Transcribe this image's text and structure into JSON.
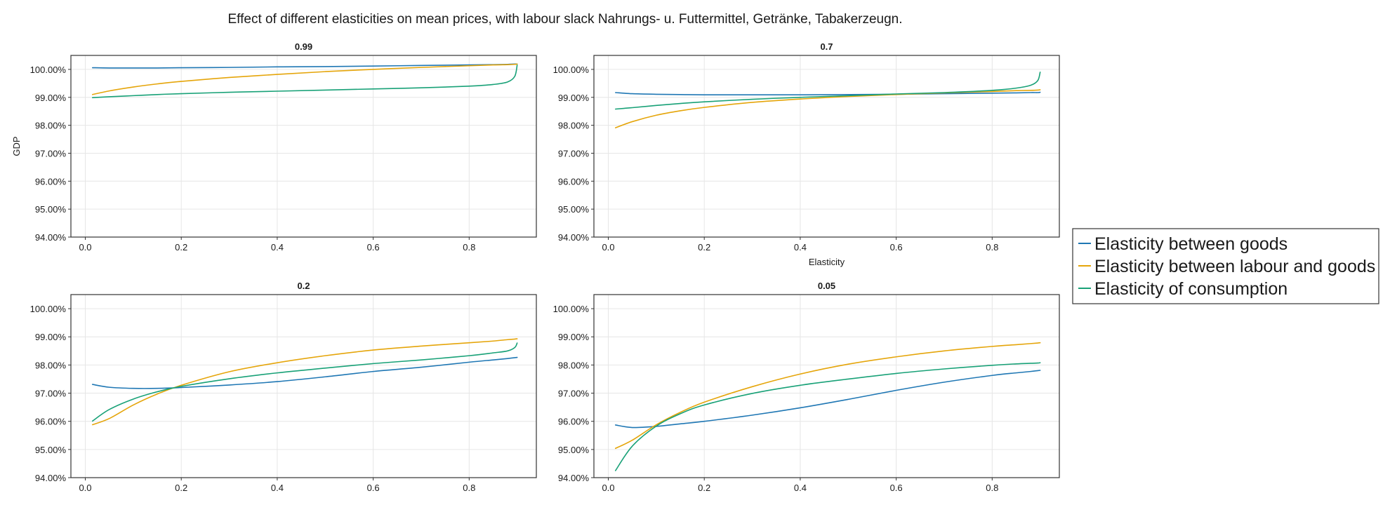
{
  "chart_data": {
    "type": "line",
    "title": "Effect of different elasticities on mean prices, with labour slack Nahrungs- u. Futtermittel, Getränke, Tabakerzeugn.",
    "legend": {
      "placement": "right",
      "entries": [
        {
          "name": "Elasticity between goods",
          "color": "#1f77b4"
        },
        {
          "name": "Elasticity between labour and goods",
          "color": "#e5a50a"
        },
        {
          "name": "Elasticity of consumption",
          "color": "#18a177"
        }
      ]
    },
    "grid": true,
    "shared_axes": {
      "xlim": [
        -0.03,
        0.94
      ],
      "ylim": [
        94.0,
        100.5
      ],
      "xticks": [
        0.0,
        0.2,
        0.4,
        0.6,
        0.8
      ],
      "xtick_labels": [
        "0.0",
        "0.2",
        "0.4",
        "0.6",
        "0.8"
      ],
      "yticks": [
        94,
        95,
        96,
        97,
        98,
        99,
        100
      ],
      "ytick_labels": [
        "94.00%",
        "95.00%",
        "96.00%",
        "97.00%",
        "98.00%",
        "99.00%",
        "100.00%"
      ]
    },
    "x": [
      0.015,
      0.05,
      0.1,
      0.15,
      0.2,
      0.3,
      0.4,
      0.5,
      0.6,
      0.7,
      0.8,
      0.85,
      0.88,
      0.895,
      0.9
    ],
    "panels": [
      {
        "title": "0.99",
        "ylabel": "GDP",
        "xlabel": "",
        "series": [
          {
            "name": "Elasticity between goods",
            "values": [
              100.06,
              100.05,
              100.05,
              100.05,
              100.06,
              100.07,
              100.09,
              100.1,
              100.12,
              100.14,
              100.16,
              100.17,
              100.18,
              100.19,
              100.19
            ]
          },
          {
            "name": "Elasticity between labour and goods",
            "values": [
              99.1,
              99.23,
              99.37,
              99.48,
              99.57,
              99.71,
              99.82,
              99.92,
              100.0,
              100.07,
              100.13,
              100.16,
              100.17,
              100.18,
              100.19
            ]
          },
          {
            "name": "Elasticity of consumption",
            "values": [
              98.99,
              99.02,
              99.06,
              99.1,
              99.13,
              99.18,
              99.22,
              99.26,
              99.3,
              99.34,
              99.4,
              99.46,
              99.55,
              99.75,
              100.15
            ]
          }
        ]
      },
      {
        "title": "0.7",
        "ylabel": "",
        "xlabel": "Elasticity",
        "series": [
          {
            "name": "Elasticity between goods",
            "values": [
              99.17,
              99.13,
              99.11,
              99.1,
              99.09,
              99.09,
              99.09,
              99.1,
              99.11,
              99.13,
              99.15,
              99.16,
              99.17,
              99.17,
              99.18
            ]
          },
          {
            "name": "Elasticity between labour and goods",
            "values": [
              97.91,
              98.13,
              98.36,
              98.52,
              98.64,
              98.82,
              98.94,
              99.03,
              99.1,
              99.16,
              99.21,
              99.24,
              99.25,
              99.26,
              99.27
            ]
          },
          {
            "name": "Elasticity of consumption",
            "values": [
              98.58,
              98.63,
              98.71,
              98.78,
              98.84,
              98.93,
              99.0,
              99.06,
              99.12,
              99.17,
              99.25,
              99.33,
              99.43,
              99.6,
              99.9
            ]
          }
        ]
      },
      {
        "title": "0.2",
        "ylabel": "",
        "xlabel": "",
        "series": [
          {
            "name": "Elasticity between goods",
            "values": [
              97.31,
              97.21,
              97.17,
              97.17,
              97.2,
              97.29,
              97.41,
              97.58,
              97.77,
              97.92,
              98.1,
              98.18,
              98.23,
              98.26,
              98.27
            ]
          },
          {
            "name": "Elasticity between labour and goods",
            "values": [
              95.88,
              96.1,
              96.58,
              96.97,
              97.28,
              97.76,
              98.08,
              98.33,
              98.53,
              98.67,
              98.79,
              98.85,
              98.9,
              98.92,
              98.93
            ]
          },
          {
            "name": "Elasticity of consumption",
            "values": [
              96.01,
              96.42,
              96.79,
              97.05,
              97.24,
              97.51,
              97.72,
              97.89,
              98.05,
              98.18,
              98.33,
              98.43,
              98.5,
              98.62,
              98.78
            ]
          }
        ]
      },
      {
        "title": "0.05",
        "ylabel": "",
        "xlabel": "",
        "series": [
          {
            "name": "Elasticity between goods",
            "values": [
              95.87,
              95.78,
              95.82,
              95.91,
              96.0,
              96.22,
              96.48,
              96.78,
              97.1,
              97.39,
              97.63,
              97.72,
              97.77,
              97.8,
              97.81
            ]
          },
          {
            "name": "Elasticity between labour and goods",
            "values": [
              95.04,
              95.33,
              95.88,
              96.32,
              96.68,
              97.23,
              97.68,
              98.03,
              98.29,
              98.5,
              98.66,
              98.72,
              98.76,
              98.78,
              98.79
            ]
          },
          {
            "name": "Elasticity of consumption",
            "values": [
              94.25,
              95.12,
              95.83,
              96.27,
              96.58,
              96.99,
              97.28,
              97.5,
              97.7,
              97.86,
              97.99,
              98.04,
              98.06,
              98.07,
              98.08
            ]
          }
        ]
      }
    ]
  }
}
